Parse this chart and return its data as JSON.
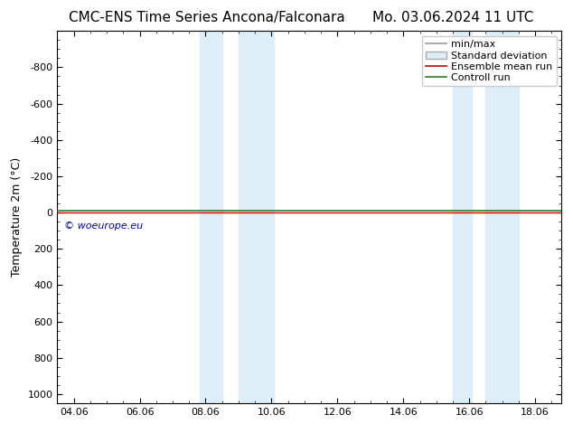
{
  "title_left": "CMC-ENS Time Series Ancona/Falconara",
  "title_right": "Mo. 03.06.2024 11 UTC",
  "ylabel": "Temperature 2m (°C)",
  "xlim_min": 3.5,
  "xlim_max": 18.8,
  "ylim_bottom": 1050,
  "ylim_top": -1000,
  "yticks": [
    -800,
    -600,
    -400,
    -200,
    0,
    200,
    400,
    600,
    800,
    1000
  ],
  "xtick_positions": [
    4,
    6,
    8,
    10,
    12,
    14,
    16,
    18
  ],
  "xtick_labels": [
    "04.06",
    "06.06",
    "08.06",
    "10.06",
    "12.06",
    "14.06",
    "16.06",
    "18.06"
  ],
  "background_color": "#ffffff",
  "plot_bg_color": "#ffffff",
  "shaded_regions": [
    [
      7.83,
      8.5
    ],
    [
      9.0,
      10.08
    ],
    [
      15.5,
      16.08
    ],
    [
      16.5,
      17.5
    ]
  ],
  "shaded_color": "#ddeef8",
  "control_run_color": "#2e7d32",
  "ensemble_mean_color": "#cc0000",
  "min_max_color": "#999999",
  "watermark": "© woeurope.eu",
  "watermark_color": "#0000bb",
  "legend_labels": [
    "min/max",
    "Standard deviation",
    "Ensemble mean run",
    "Controll run"
  ],
  "legend_colors": [
    "#999999",
    "#ddeef8",
    "#cc0000",
    "#2e7d32"
  ],
  "tick_fontsize": 8,
  "ylabel_fontsize": 9,
  "title_fontsize": 11,
  "legend_fontsize": 8
}
